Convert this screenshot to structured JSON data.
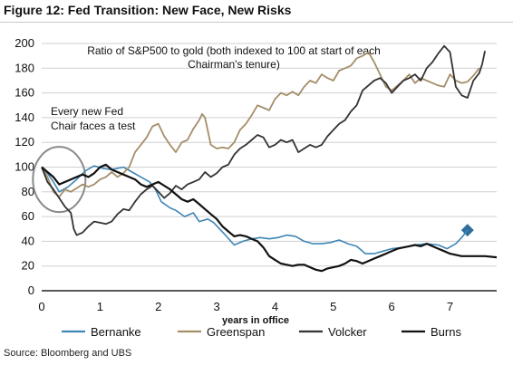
{
  "figure_title": "Figure 12: Fed Transition: New Face, New Risks",
  "source": "Source:  Bloomberg and UBS",
  "chart_data": {
    "type": "line",
    "title": "Ratio of S&P500 to gold (both indexed to 100 at start of each Chairman's tenure)",
    "xlabel": "years in office",
    "ylabel": "",
    "xlim": [
      0,
      7.8
    ],
    "ylim": [
      0,
      200
    ],
    "x_ticks": [
      0,
      1,
      2,
      3,
      4,
      5,
      6,
      7
    ],
    "y_ticks": [
      0,
      20,
      40,
      60,
      80,
      100,
      120,
      140,
      160,
      180,
      200
    ],
    "grid": "horizontal",
    "legend_position": "bottom",
    "annotations": [
      {
        "text_lines": [
          "Every new Fed",
          "Chair faces a test"
        ],
        "type": "text"
      },
      {
        "type": "ellipse",
        "center": [
          0.3,
          90
        ],
        "note": "grey circle highlighting early drop"
      },
      {
        "type": "diamond-marker",
        "x": 7.3,
        "y": 49,
        "color": "#2e6f9e"
      }
    ],
    "series": [
      {
        "name": "Bernanke",
        "color": "#3e86b5",
        "points": [
          [
            0,
            100
          ],
          [
            0.1,
            95
          ],
          [
            0.2,
            88
          ],
          [
            0.3,
            80
          ],
          [
            0.45,
            84
          ],
          [
            0.6,
            90
          ],
          [
            0.75,
            97
          ],
          [
            0.9,
            101
          ],
          [
            1.05,
            99
          ],
          [
            1.2,
            98
          ],
          [
            1.4,
            100
          ],
          [
            1.55,
            96
          ],
          [
            1.7,
            92
          ],
          [
            1.85,
            88
          ],
          [
            1.95,
            82
          ],
          [
            2.05,
            72
          ],
          [
            2.2,
            67
          ],
          [
            2.3,
            65
          ],
          [
            2.45,
            60
          ],
          [
            2.6,
            63
          ],
          [
            2.7,
            56
          ],
          [
            2.85,
            58
          ],
          [
            2.95,
            55
          ],
          [
            3.05,
            50
          ],
          [
            3.15,
            45
          ],
          [
            3.3,
            37
          ],
          [
            3.45,
            40
          ],
          [
            3.6,
            42
          ],
          [
            3.75,
            43
          ],
          [
            3.9,
            42
          ],
          [
            4.05,
            43
          ],
          [
            4.2,
            45
          ],
          [
            4.35,
            44
          ],
          [
            4.5,
            40
          ],
          [
            4.65,
            38
          ],
          [
            4.8,
            38
          ],
          [
            4.95,
            39
          ],
          [
            5.1,
            41
          ],
          [
            5.25,
            38
          ],
          [
            5.4,
            36
          ],
          [
            5.55,
            30
          ],
          [
            5.7,
            30
          ],
          [
            5.85,
            32
          ],
          [
            6.0,
            34
          ],
          [
            6.2,
            35
          ],
          [
            6.4,
            37
          ],
          [
            6.6,
            38
          ],
          [
            6.8,
            37
          ],
          [
            6.95,
            34
          ],
          [
            7.1,
            38
          ],
          [
            7.2,
            43
          ],
          [
            7.3,
            49
          ]
        ]
      },
      {
        "name": "Greenspan",
        "color": "#a48e6a",
        "points": [
          [
            0,
            100
          ],
          [
            0.1,
            92
          ],
          [
            0.2,
            80
          ],
          [
            0.3,
            76
          ],
          [
            0.4,
            82
          ],
          [
            0.5,
            80
          ],
          [
            0.6,
            83
          ],
          [
            0.7,
            86
          ],
          [
            0.8,
            84
          ],
          [
            0.9,
            86
          ],
          [
            1.0,
            90
          ],
          [
            1.1,
            92
          ],
          [
            1.2,
            96
          ],
          [
            1.3,
            92
          ],
          [
            1.4,
            95
          ],
          [
            1.5,
            100
          ],
          [
            1.6,
            112
          ],
          [
            1.7,
            118
          ],
          [
            1.8,
            124
          ],
          [
            1.9,
            133
          ],
          [
            2.0,
            135
          ],
          [
            2.1,
            125
          ],
          [
            2.2,
            118
          ],
          [
            2.3,
            112
          ],
          [
            2.4,
            120
          ],
          [
            2.5,
            122
          ],
          [
            2.6,
            131
          ],
          [
            2.7,
            138
          ],
          [
            2.75,
            143
          ],
          [
            2.8,
            140
          ],
          [
            2.9,
            118
          ],
          [
            3.0,
            115
          ],
          [
            3.1,
            116
          ],
          [
            3.2,
            115
          ],
          [
            3.3,
            120
          ],
          [
            3.4,
            130
          ],
          [
            3.5,
            135
          ],
          [
            3.6,
            142
          ],
          [
            3.7,
            150
          ],
          [
            3.8,
            148
          ],
          [
            3.9,
            146
          ],
          [
            4.0,
            155
          ],
          [
            4.1,
            160
          ],
          [
            4.2,
            158
          ],
          [
            4.3,
            161
          ],
          [
            4.4,
            158
          ],
          [
            4.5,
            165
          ],
          [
            4.6,
            170
          ],
          [
            4.7,
            168
          ],
          [
            4.8,
            175
          ],
          [
            4.9,
            172
          ],
          [
            5.0,
            170
          ],
          [
            5.1,
            178
          ],
          [
            5.2,
            180
          ],
          [
            5.3,
            182
          ],
          [
            5.4,
            188
          ],
          [
            5.5,
            190
          ],
          [
            5.6,
            193
          ],
          [
            5.7,
            185
          ],
          [
            5.8,
            175
          ],
          [
            5.9,
            165
          ],
          [
            6.0,
            162
          ],
          [
            6.1,
            166
          ],
          [
            6.2,
            170
          ],
          [
            6.3,
            175
          ],
          [
            6.4,
            168
          ],
          [
            6.5,
            172
          ],
          [
            6.6,
            170
          ],
          [
            6.7,
            168
          ],
          [
            6.8,
            166
          ],
          [
            6.9,
            165
          ],
          [
            7.0,
            175
          ],
          [
            7.1,
            170
          ],
          [
            7.2,
            168
          ],
          [
            7.3,
            169
          ],
          [
            7.4,
            174
          ],
          [
            7.5,
            180
          ]
        ]
      },
      {
        "name": "Volcker",
        "color": "#333333",
        "points": [
          [
            0,
            100
          ],
          [
            0.1,
            88
          ],
          [
            0.2,
            82
          ],
          [
            0.3,
            75
          ],
          [
            0.4,
            68
          ],
          [
            0.5,
            63
          ],
          [
            0.55,
            50
          ],
          [
            0.6,
            45
          ],
          [
            0.7,
            47
          ],
          [
            0.8,
            52
          ],
          [
            0.9,
            56
          ],
          [
            1.0,
            55
          ],
          [
            1.1,
            54
          ],
          [
            1.2,
            56
          ],
          [
            1.3,
            62
          ],
          [
            1.4,
            66
          ],
          [
            1.5,
            65
          ],
          [
            1.6,
            72
          ],
          [
            1.7,
            78
          ],
          [
            1.8,
            82
          ],
          [
            1.9,
            85
          ],
          [
            2.0,
            80
          ],
          [
            2.1,
            75
          ],
          [
            2.2,
            79
          ],
          [
            2.3,
            85
          ],
          [
            2.4,
            82
          ],
          [
            2.5,
            86
          ],
          [
            2.6,
            88
          ],
          [
            2.7,
            90
          ],
          [
            2.8,
            96
          ],
          [
            2.9,
            92
          ],
          [
            3.0,
            95
          ],
          [
            3.1,
            100
          ],
          [
            3.2,
            102
          ],
          [
            3.3,
            110
          ],
          [
            3.4,
            115
          ],
          [
            3.5,
            118
          ],
          [
            3.6,
            122
          ],
          [
            3.7,
            126
          ],
          [
            3.8,
            124
          ],
          [
            3.9,
            116
          ],
          [
            4.0,
            118
          ],
          [
            4.1,
            122
          ],
          [
            4.2,
            120
          ],
          [
            4.3,
            122
          ],
          [
            4.4,
            112
          ],
          [
            4.5,
            115
          ],
          [
            4.6,
            118
          ],
          [
            4.7,
            116
          ],
          [
            4.8,
            118
          ],
          [
            4.9,
            125
          ],
          [
            5.0,
            130
          ],
          [
            5.1,
            135
          ],
          [
            5.2,
            138
          ],
          [
            5.3,
            145
          ],
          [
            5.4,
            150
          ],
          [
            5.5,
            162
          ],
          [
            5.6,
            166
          ],
          [
            5.7,
            170
          ],
          [
            5.8,
            172
          ],
          [
            5.9,
            168
          ],
          [
            6.0,
            160
          ],
          [
            6.1,
            165
          ],
          [
            6.2,
            170
          ],
          [
            6.3,
            172
          ],
          [
            6.4,
            175
          ],
          [
            6.5,
            170
          ],
          [
            6.6,
            180
          ],
          [
            6.7,
            185
          ],
          [
            6.8,
            192
          ],
          [
            6.9,
            198
          ],
          [
            7.0,
            193
          ],
          [
            7.1,
            165
          ],
          [
            7.2,
            158
          ],
          [
            7.3,
            156
          ],
          [
            7.4,
            170
          ],
          [
            7.5,
            176
          ],
          [
            7.55,
            183
          ],
          [
            7.6,
            194
          ]
        ]
      },
      {
        "name": "Burns",
        "color": "#111111",
        "points": [
          [
            0,
            100
          ],
          [
            0.1,
            96
          ],
          [
            0.2,
            92
          ],
          [
            0.3,
            86
          ],
          [
            0.4,
            88
          ],
          [
            0.5,
            90
          ],
          [
            0.6,
            92
          ],
          [
            0.7,
            94
          ],
          [
            0.8,
            92
          ],
          [
            0.9,
            95
          ],
          [
            1.0,
            100
          ],
          [
            1.1,
            102
          ],
          [
            1.2,
            98
          ],
          [
            1.3,
            96
          ],
          [
            1.4,
            94
          ],
          [
            1.5,
            92
          ],
          [
            1.6,
            90
          ],
          [
            1.7,
            86
          ],
          [
            1.8,
            84
          ],
          [
            1.9,
            86
          ],
          [
            2.0,
            88
          ],
          [
            2.1,
            85
          ],
          [
            2.2,
            82
          ],
          [
            2.3,
            78
          ],
          [
            2.4,
            74
          ],
          [
            2.5,
            72
          ],
          [
            2.6,
            74
          ],
          [
            2.7,
            70
          ],
          [
            2.8,
            66
          ],
          [
            2.9,
            62
          ],
          [
            3.0,
            58
          ],
          [
            3.1,
            52
          ],
          [
            3.2,
            48
          ],
          [
            3.3,
            44
          ],
          [
            3.4,
            45
          ],
          [
            3.5,
            44
          ],
          [
            3.6,
            42
          ],
          [
            3.7,
            40
          ],
          [
            3.8,
            35
          ],
          [
            3.9,
            28
          ],
          [
            4.0,
            25
          ],
          [
            4.1,
            22
          ],
          [
            4.2,
            21
          ],
          [
            4.3,
            20
          ],
          [
            4.4,
            21
          ],
          [
            4.5,
            21
          ],
          [
            4.6,
            19
          ],
          [
            4.7,
            17
          ],
          [
            4.8,
            16
          ],
          [
            4.9,
            18
          ],
          [
            5.0,
            19
          ],
          [
            5.1,
            20
          ],
          [
            5.2,
            22
          ],
          [
            5.3,
            25
          ],
          [
            5.4,
            24
          ],
          [
            5.5,
            22
          ],
          [
            5.6,
            24
          ],
          [
            5.7,
            26
          ],
          [
            5.8,
            28
          ],
          [
            5.9,
            30
          ],
          [
            6.0,
            32
          ],
          [
            6.1,
            34
          ],
          [
            6.2,
            35
          ],
          [
            6.3,
            36
          ],
          [
            6.4,
            37
          ],
          [
            6.5,
            36
          ],
          [
            6.6,
            38
          ],
          [
            6.7,
            36
          ],
          [
            6.8,
            34
          ],
          [
            6.9,
            32
          ],
          [
            7.0,
            30
          ],
          [
            7.2,
            28
          ],
          [
            7.4,
            28
          ],
          [
            7.6,
            28
          ],
          [
            7.8,
            27
          ]
        ]
      }
    ]
  }
}
